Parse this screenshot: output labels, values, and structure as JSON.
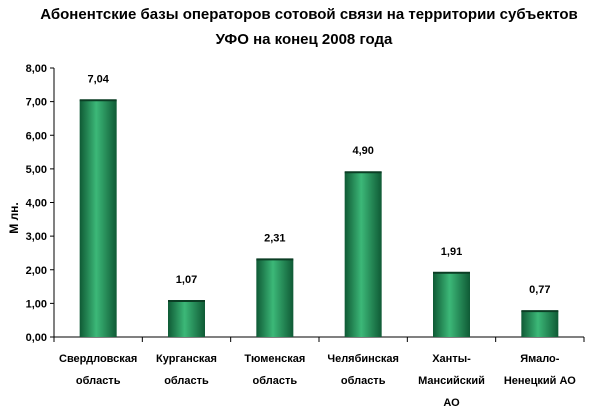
{
  "chart_data": {
    "type": "bar",
    "title_lines": [
      "Абонентские базы операторов сотовой связи на территории субъектов",
      "УФО на конец 2008 года"
    ],
    "ylabel": "М лн.",
    "xlabel": "",
    "categories": [
      [
        "Свердловская",
        "область"
      ],
      [
        "Курганская",
        "область"
      ],
      [
        "Тюменская",
        "область"
      ],
      [
        "Челябинская",
        "область"
      ],
      [
        "Ханты-",
        "Мансийский",
        "АО"
      ],
      [
        "Ямало-",
        "Ненецкий АО"
      ]
    ],
    "values": [
      7.04,
      1.07,
      2.31,
      4.9,
      1.91,
      0.77
    ],
    "data_labels": [
      "7,04",
      "1,07",
      "2,31",
      "4,90",
      "1,91",
      "0,77"
    ],
    "ylim": [
      0,
      8
    ],
    "yticks": [
      0,
      1,
      2,
      3,
      4,
      5,
      6,
      7,
      8
    ],
    "ytick_labels": [
      "0,00",
      "1,00",
      "2,00",
      "3,00",
      "4,00",
      "5,00",
      "6,00",
      "7,00",
      "8,00"
    ],
    "grid": false,
    "legend": "none",
    "colors": {
      "bar_light": "#3cb878",
      "bar_dark": "#0f5a35",
      "bar_top": "#0b3d24",
      "axis": "#000000",
      "tick_text": "#000000"
    }
  }
}
